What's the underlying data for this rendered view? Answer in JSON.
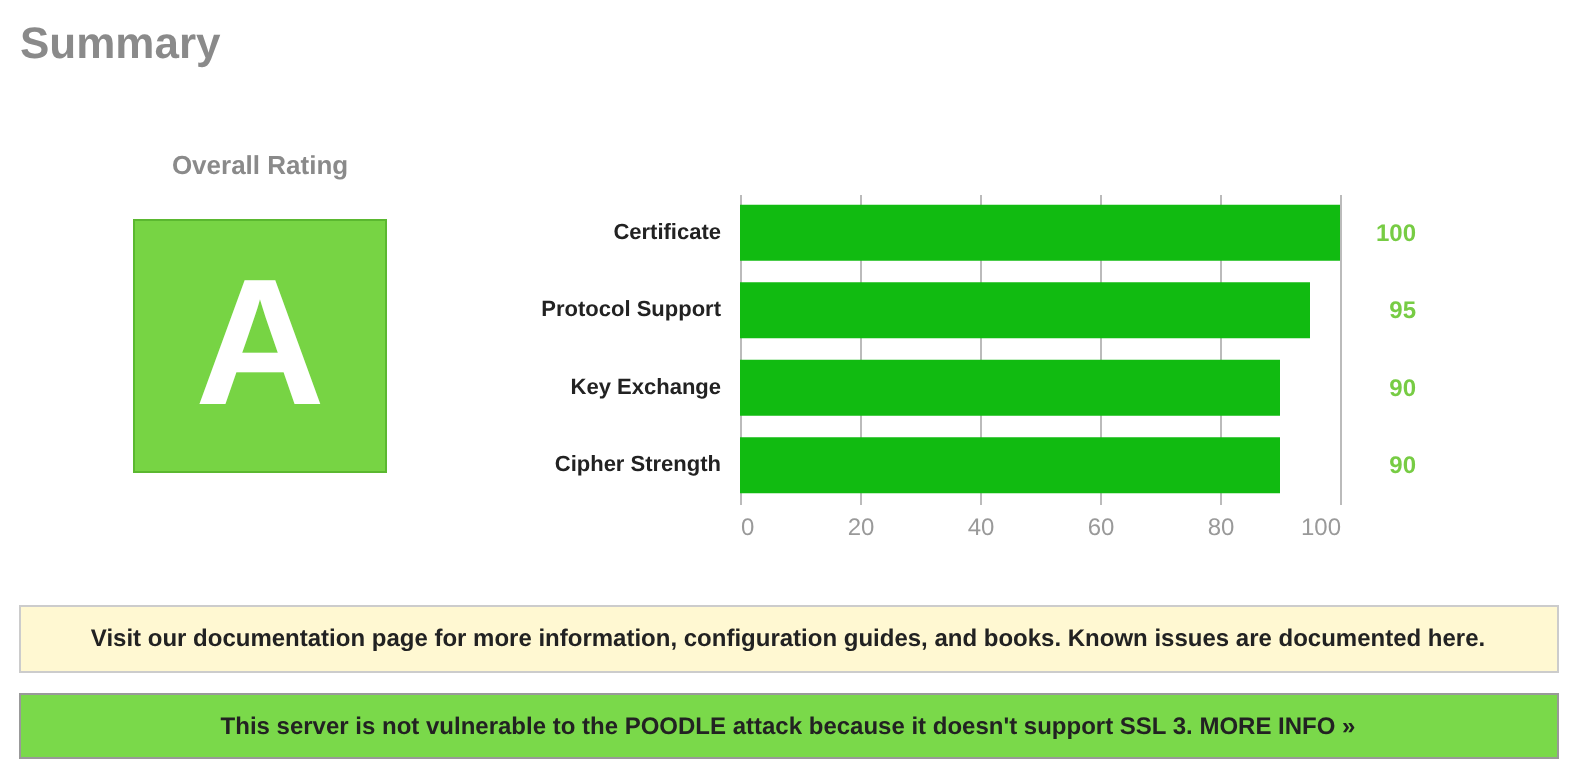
{
  "chart_data": {
    "type": "bar",
    "orientation": "horizontal",
    "title": "Summary",
    "categories": [
      "Certificate",
      "Protocol Support",
      "Key Exchange",
      "Cipher Strength"
    ],
    "values": [
      100,
      95,
      90,
      90
    ],
    "color": "#11bb11",
    "xlim": [
      0,
      100
    ],
    "xticks": [
      0,
      20,
      40,
      60,
      80,
      100
    ],
    "grid": "x",
    "data_labels": true,
    "annotations": [
      "Overall Rating",
      "A",
      "Visit our documentation page for more information, configuration guides, and books. Known issues are documented here.",
      "This server is not vulnerable to the POODLE attack because it doesn't support SSL 3. MORE INFO »"
    ]
  }
}
